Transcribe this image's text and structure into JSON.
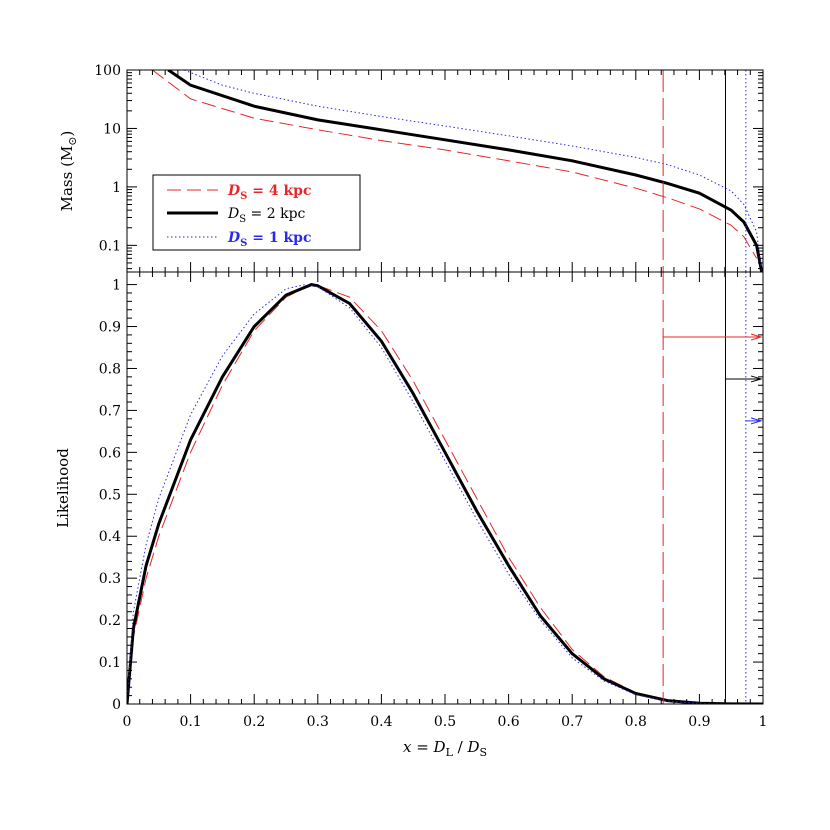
{
  "chart_data": [
    {
      "panel": "top",
      "type": "line",
      "ylabel": "Mass (M",
      "ylabel_sub": "⊙",
      "ylabel_close": ")",
      "yscale": "log",
      "xlim": [
        0,
        1
      ],
      "ylim": [
        0.035,
        100
      ],
      "yticks": [
        0.1,
        1,
        10,
        100
      ],
      "ytick_labels": [
        "0.1",
        "1",
        "10",
        "100"
      ],
      "legend": {
        "placement": "center-left",
        "entries": [
          {
            "prefix": "D",
            "sub": "S",
            "rest": " = 4 kpc",
            "color": "#e8252a",
            "dash": "dashed"
          },
          {
            "prefix": "D",
            "sub": "S",
            "rest": " = 2 kpc",
            "color": "#000000",
            "dash": "solid"
          },
          {
            "prefix": "D",
            "sub": "S",
            "rest": " = 1 kpc",
            "color": "#2a2ae8",
            "dash": "dotted"
          }
        ]
      },
      "series": [
        {
          "color": "#e8252a",
          "dash": "dashed",
          "x": [
            0.04,
            0.1,
            0.2,
            0.3,
            0.4,
            0.5,
            0.6,
            0.7,
            0.8,
            0.85,
            0.9,
            0.95,
            0.97,
            0.99
          ],
          "y": [
            100,
            32,
            15,
            9.5,
            6.2,
            4.3,
            2.8,
            1.8,
            0.95,
            0.65,
            0.42,
            0.22,
            0.14,
            0.06
          ]
        },
        {
          "color": "#000000",
          "dash": "solid",
          "x": [
            0.065,
            0.1,
            0.2,
            0.3,
            0.4,
            0.5,
            0.6,
            0.7,
            0.8,
            0.85,
            0.9,
            0.95,
            0.97,
            0.99,
            0.998
          ],
          "y": [
            100,
            55,
            24,
            14,
            9.5,
            6.4,
            4.3,
            2.8,
            1.6,
            1.15,
            0.78,
            0.4,
            0.25,
            0.1,
            0.035
          ]
        },
        {
          "color": "#2a2ae8",
          "dash": "dotted",
          "x": [
            0.09,
            0.15,
            0.2,
            0.3,
            0.4,
            0.5,
            0.6,
            0.7,
            0.8,
            0.85,
            0.9,
            0.95,
            0.97,
            0.99,
            0.998
          ],
          "y": [
            100,
            55,
            40,
            24,
            16,
            11,
            7.5,
            5.0,
            3.2,
            2.4,
            1.6,
            0.85,
            0.5,
            0.17,
            0.035
          ]
        }
      ],
      "vlines": [
        {
          "x": 0.843,
          "color": "#e8252a",
          "dash": "longdash"
        },
        {
          "x": 0.941,
          "color": "#000000",
          "dash": "solid"
        },
        {
          "x": 0.973,
          "color": "#2a2ae8",
          "dash": "dotted"
        }
      ]
    },
    {
      "panel": "bottom",
      "type": "line",
      "ylabel": "Likelihood",
      "xlabel_parts": [
        "x",
        " = ",
        "D",
        "L",
        " / ",
        "D",
        "S"
      ],
      "xlim": [
        0,
        1
      ],
      "ylim": [
        0,
        1.03
      ],
      "xticks": [
        0,
        0.1,
        0.2,
        0.3,
        0.4,
        0.5,
        0.6,
        0.7,
        0.8,
        0.9,
        1
      ],
      "xtick_labels": [
        "0",
        "0.1",
        "0.2",
        "0.3",
        "0.4",
        "0.5",
        "0.6",
        "0.7",
        "0.8",
        "0.9",
        "1"
      ],
      "yticks": [
        0,
        0.1,
        0.2,
        0.3,
        0.4,
        0.5,
        0.6,
        0.7,
        0.8,
        0.9,
        1
      ],
      "ytick_labels": [
        "0",
        "0.1",
        "0.2",
        "0.3",
        "0.4",
        "0.5",
        "0.6",
        "0.7",
        "0.8",
        "0.9",
        "1"
      ],
      "series": [
        {
          "color": "#e8252a",
          "dash": "dashed",
          "x": [
            0,
            0.01,
            0.03,
            0.05,
            0.1,
            0.15,
            0.2,
            0.25,
            0.29,
            0.3,
            0.35,
            0.4,
            0.45,
            0.5,
            0.55,
            0.6,
            0.65,
            0.7,
            0.75,
            0.8,
            0.85,
            0.9,
            0.95,
            1.0
          ],
          "y": [
            0,
            0.16,
            0.3,
            0.4,
            0.6,
            0.76,
            0.89,
            0.97,
            1.0,
            0.998,
            0.97,
            0.89,
            0.77,
            0.63,
            0.49,
            0.35,
            0.23,
            0.13,
            0.065,
            0.027,
            0.009,
            0.002,
            0.0003,
            0
          ]
        },
        {
          "color": "#000000",
          "dash": "solid",
          "x": [
            0,
            0.01,
            0.03,
            0.05,
            0.1,
            0.15,
            0.2,
            0.25,
            0.29,
            0.3,
            0.35,
            0.4,
            0.45,
            0.5,
            0.55,
            0.6,
            0.65,
            0.7,
            0.75,
            0.8,
            0.85,
            0.9,
            0.95,
            1.0
          ],
          "y": [
            0,
            0.18,
            0.33,
            0.43,
            0.63,
            0.78,
            0.9,
            0.975,
            1.0,
            0.997,
            0.955,
            0.865,
            0.74,
            0.6,
            0.46,
            0.33,
            0.21,
            0.12,
            0.06,
            0.025,
            0.008,
            0.002,
            0.0003,
            0
          ]
        },
        {
          "color": "#2a2ae8",
          "dash": "dotted",
          "x": [
            0,
            0.01,
            0.03,
            0.05,
            0.1,
            0.15,
            0.2,
            0.25,
            0.28,
            0.3,
            0.35,
            0.4,
            0.45,
            0.5,
            0.55,
            0.6,
            0.65,
            0.7,
            0.75,
            0.8,
            0.85,
            0.9,
            0.95,
            1.0
          ],
          "y": [
            0,
            0.22,
            0.38,
            0.49,
            0.69,
            0.83,
            0.93,
            0.99,
            1.0,
            0.995,
            0.945,
            0.85,
            0.72,
            0.58,
            0.44,
            0.31,
            0.2,
            0.11,
            0.055,
            0.022,
            0.007,
            0.0015,
            0.0002,
            0
          ]
        }
      ],
      "vlines": [
        {
          "x": 0.843,
          "color": "#e8252a",
          "dash": "longdash"
        },
        {
          "x": 0.941,
          "color": "#000000",
          "dash": "solid"
        },
        {
          "x": 0.973,
          "color": "#2a2ae8",
          "dash": "dotted"
        }
      ],
      "arrows": [
        {
          "y": 0.875,
          "from_x": 0.843,
          "color": "#e8252a"
        },
        {
          "y": 0.775,
          "from_x": 0.941,
          "color": "#000000"
        },
        {
          "y": 0.675,
          "from_x": 0.973,
          "color": "#2a2ae8"
        }
      ]
    }
  ]
}
